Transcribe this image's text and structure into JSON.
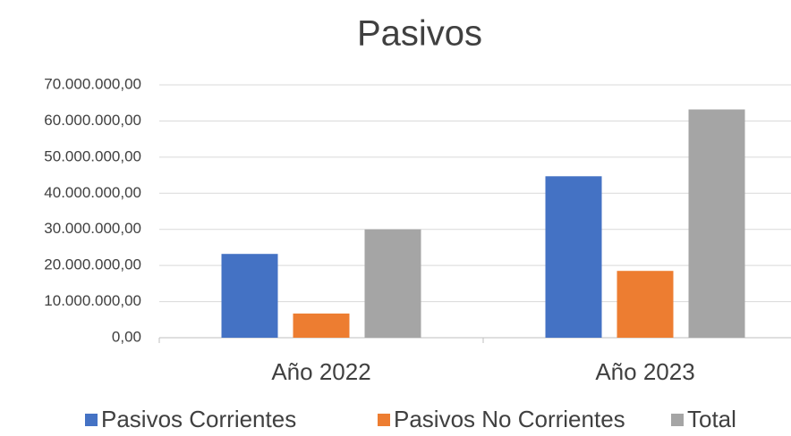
{
  "chart_data": {
    "type": "bar",
    "title": "Pasivos",
    "categories": [
      "Año 2022",
      "Año 2023"
    ],
    "series": [
      {
        "name": "Pasivos Corrientes",
        "color": "#4472c4",
        "values": [
          23200000,
          44700000
        ]
      },
      {
        "name": "Pasivos No Corrientes",
        "color": "#ed7d31",
        "values": [
          6700000,
          18500000
        ]
      },
      {
        "name": "Total",
        "color": "#a5a5a5",
        "values": [
          30000000,
          63200000
        ]
      }
    ],
    "ylim": [
      0,
      70000000
    ],
    "yticks": [
      {
        "value": 0,
        "label": "0,00"
      },
      {
        "value": 10000000,
        "label": "10.000.000,00"
      },
      {
        "value": 20000000,
        "label": "20.000.000,00"
      },
      {
        "value": 30000000,
        "label": "30.000.000,00"
      },
      {
        "value": 40000000,
        "label": "40.000.000,00"
      },
      {
        "value": 50000000,
        "label": "50.000.000,00"
      },
      {
        "value": 60000000,
        "label": "60.000.000,00"
      },
      {
        "value": 70000000,
        "label": "70.000.000,00"
      }
    ],
    "grid": true,
    "legend": "bottom"
  }
}
